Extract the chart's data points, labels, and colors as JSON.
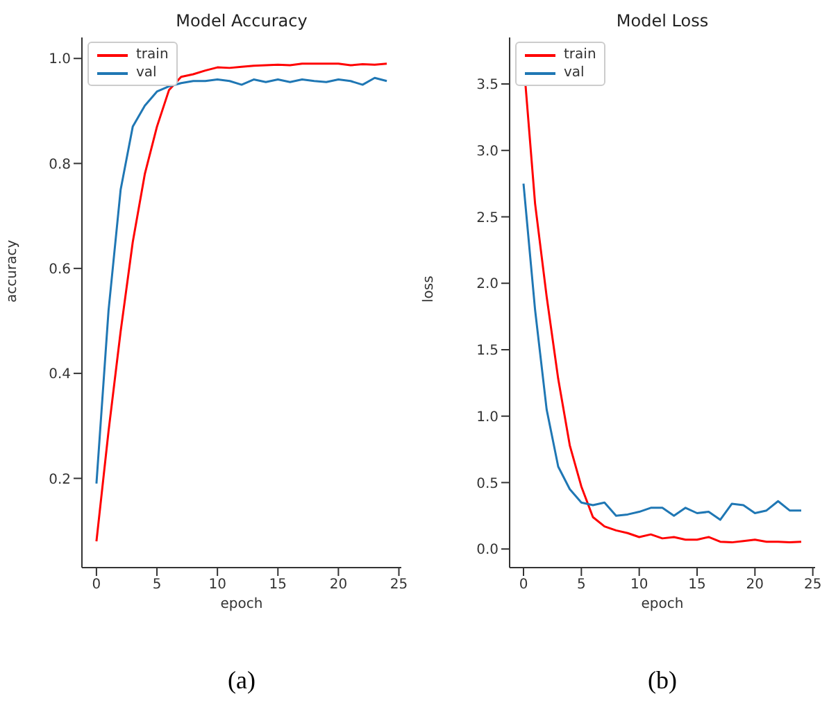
{
  "chart_data": [
    {
      "type": "line",
      "title": "Model Accuracy",
      "xlabel": "epoch",
      "ylabel": "accuracy",
      "annotations": [
        "(a)"
      ],
      "legend": "top left",
      "grid": false,
      "x": [
        0,
        1,
        2,
        3,
        4,
        5,
        6,
        7,
        8,
        9,
        10,
        11,
        12,
        13,
        14,
        15,
        16,
        17,
        18,
        19,
        20,
        21,
        22,
        23,
        24
      ],
      "series": [
        {
          "name": "train",
          "color": "#ff0000",
          "values": [
            0.08,
            0.29,
            0.48,
            0.65,
            0.78,
            0.87,
            0.94,
            0.965,
            0.97,
            0.977,
            0.983,
            0.982,
            0.984,
            0.986,
            0.987,
            0.988,
            0.987,
            0.99,
            0.99,
            0.99,
            0.99,
            0.987,
            0.989,
            0.988,
            0.99
          ]
        },
        {
          "name": "val",
          "color": "#1f77b4",
          "values": [
            0.19,
            0.52,
            0.75,
            0.87,
            0.91,
            0.937,
            0.947,
            0.953,
            0.957,
            0.957,
            0.96,
            0.957,
            0.95,
            0.96,
            0.955,
            0.96,
            0.955,
            0.96,
            0.957,
            0.955,
            0.96,
            0.957,
            0.95,
            0.963,
            0.957
          ]
        }
      ],
      "xlim": [
        -1.2,
        25.2
      ],
      "xticks": [
        0,
        5,
        10,
        15,
        20,
        25
      ],
      "ylim": [
        0.03,
        1.04
      ],
      "yticks": [
        0.2,
        0.4,
        0.6,
        0.8,
        {
          "value": 1.0,
          "label": "1.0"
        }
      ]
    },
    {
      "type": "line",
      "title": "Model Loss",
      "xlabel": "epoch",
      "ylabel": "loss",
      "annotations": [
        "(b)"
      ],
      "legend": "top left",
      "grid": false,
      "x": [
        0,
        1,
        2,
        3,
        4,
        5,
        6,
        7,
        8,
        9,
        10,
        11,
        12,
        13,
        14,
        15,
        16,
        17,
        18,
        19,
        20,
        21,
        22,
        23,
        24
      ],
      "series": [
        {
          "name": "train",
          "color": "#ff0000",
          "values": [
            3.68,
            2.6,
            1.9,
            1.28,
            0.78,
            0.47,
            0.24,
            0.17,
            0.14,
            0.12,
            0.09,
            0.11,
            0.08,
            0.09,
            0.07,
            0.07,
            0.09,
            0.055,
            0.05,
            0.06,
            0.07,
            0.055,
            0.055,
            0.05,
            0.055
          ]
        },
        {
          "name": "val",
          "color": "#1f77b4",
          "values": [
            2.75,
            1.8,
            1.05,
            0.62,
            0.45,
            0.35,
            0.33,
            0.35,
            0.25,
            0.26,
            0.28,
            0.31,
            0.31,
            0.25,
            0.31,
            0.27,
            0.28,
            0.22,
            0.34,
            0.33,
            0.27,
            0.29,
            0.36,
            0.29,
            0.29
          ]
        }
      ],
      "xlim": [
        -1.2,
        25.2
      ],
      "xticks": [
        0,
        5,
        10,
        15,
        20,
        25
      ],
      "ylim": [
        -0.14,
        3.85
      ],
      "yticks": [
        {
          "value": 0,
          "label": "0.0"
        },
        0.5,
        {
          "value": 1,
          "label": "1.0"
        },
        1.5,
        {
          "value": 2,
          "label": "2.0"
        },
        2.5,
        {
          "value": 3,
          "label": "3.0"
        },
        3.5
      ]
    }
  ]
}
